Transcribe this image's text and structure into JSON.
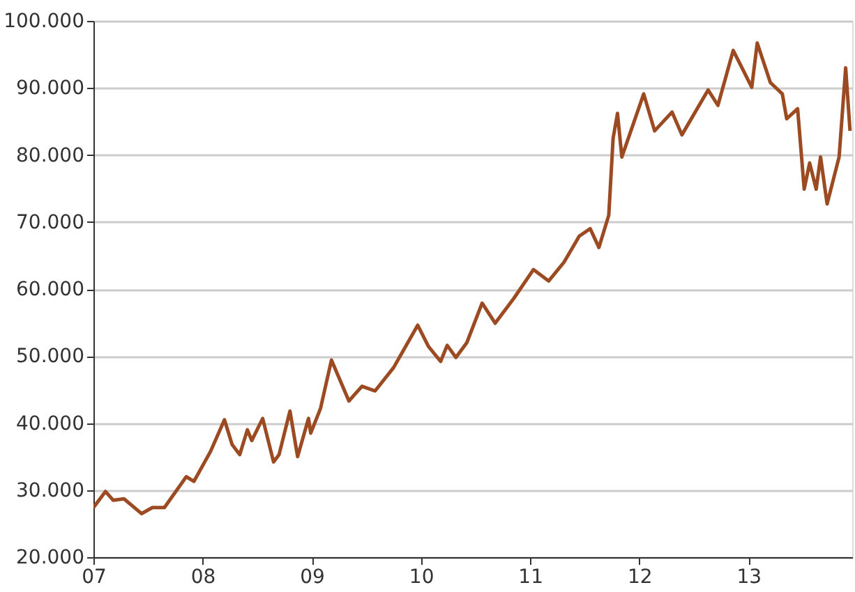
{
  "chart_data": {
    "type": "line",
    "grid": "y",
    "legend": false,
    "xlim": [
      2007,
      2013.95
    ],
    "ylim": [
      20000,
      100000
    ],
    "xticks": [
      {
        "value": 2007,
        "label": "07"
      },
      {
        "value": 2008,
        "label": "08"
      },
      {
        "value": 2009,
        "label": "09"
      },
      {
        "value": 2010,
        "label": "10"
      },
      {
        "value": 2011,
        "label": "11"
      },
      {
        "value": 2012,
        "label": "12"
      },
      {
        "value": 2013,
        "label": "13"
      }
    ],
    "yticks": [
      {
        "value": 20000,
        "label": "20.000"
      },
      {
        "value": 30000,
        "label": "30.000"
      },
      {
        "value": 40000,
        "label": "40.000"
      },
      {
        "value": 50000,
        "label": "50.000"
      },
      {
        "value": 60000,
        "label": "60.000"
      },
      {
        "value": 70000,
        "label": "70.000"
      },
      {
        "value": 80000,
        "label": "80.000"
      },
      {
        "value": 90000,
        "label": "90.000"
      },
      {
        "value": 100000,
        "label": "100.000"
      }
    ],
    "x": [
      2007.0,
      2007.11,
      2007.18,
      2007.28,
      2007.44,
      2007.54,
      2007.65,
      2007.85,
      2007.92,
      2008.07,
      2008.2,
      2008.27,
      2008.34,
      2008.41,
      2008.45,
      2008.55,
      2008.65,
      2008.7,
      2008.8,
      2008.87,
      2008.97,
      2008.99,
      2009.08,
      2009.18,
      2009.34,
      2009.46,
      2009.58,
      2009.75,
      2009.97,
      2010.07,
      2010.18,
      2010.24,
      2010.32,
      2010.42,
      2010.56,
      2010.68,
      2010.85,
      2011.03,
      2011.17,
      2011.31,
      2011.45,
      2011.55,
      2011.63,
      2011.72,
      2011.76,
      2011.8,
      2011.84,
      2012.04,
      2012.14,
      2012.3,
      2012.39,
      2012.63,
      2012.72,
      2012.86,
      2013.03,
      2013.08,
      2013.2,
      2013.31,
      2013.35,
      2013.45,
      2013.51,
      2013.56,
      2013.62,
      2013.66,
      2013.72,
      2013.83,
      2013.89,
      2013.93
    ],
    "series": [
      {
        "color": "#9c4a22",
        "values": [
          27400,
          29800,
          28500,
          28700,
          26500,
          27400,
          27400,
          32000,
          31300,
          35700,
          40500,
          36800,
          35300,
          39000,
          37400,
          40700,
          34200,
          35300,
          41800,
          35000,
          40700,
          38500,
          42200,
          49400,
          43300,
          45500,
          44800,
          48300,
          54600,
          51400,
          49200,
          51600,
          49800,
          52000,
          57900,
          54900,
          58600,
          62900,
          61200,
          64000,
          67900,
          69000,
          66200,
          71000,
          82500,
          86200,
          79700,
          89100,
          83600,
          86400,
          83000,
          89700,
          87400,
          95600,
          90100,
          96700,
          90800,
          89100,
          85400,
          86900,
          74900,
          78800,
          74900,
          79700,
          72700,
          79700,
          93000,
          83600
        ]
      }
    ]
  }
}
